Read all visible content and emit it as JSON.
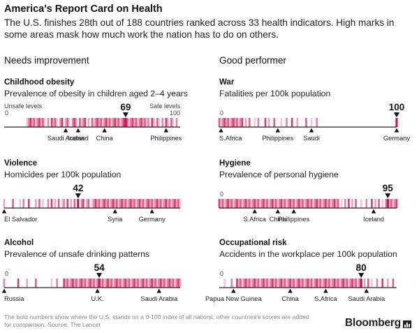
{
  "title": "America's Report Card on Health",
  "subtitle": "The U.S. finishes 28th out of 188 countries ranked across 33 health indicators. High marks in some areas mask how much work the nation has to do on others.",
  "columns": {
    "left": "Needs improvement",
    "right": "Good performer"
  },
  "footnote": "The bold numbers show where the U.S. stands on a 0-100 index of all nations; other countries's scores are added for comparison. Source: The Lancet",
  "brand": "Bloomberg",
  "colors": {
    "tick": "#d6336c",
    "axis": "#222222",
    "text": "#111111",
    "muted": "#888888"
  },
  "chart_data": [
    {
      "type": "strip",
      "title": "Childhood obesity",
      "subtitle": "Prevalence of obesity in children aged 2–4 years",
      "scale_left_label": "Unsafe levels",
      "scale_right_label": "Safe levels",
      "axis_min_label": "0",
      "axis_max_label": "100",
      "xlim": [
        0,
        100
      ],
      "us_value": 69,
      "ticks": [
        13,
        14,
        15,
        16,
        17,
        18,
        19,
        20,
        21,
        22,
        23,
        25,
        27,
        28,
        29,
        30,
        32,
        33,
        35,
        36,
        37,
        39,
        40,
        41,
        43,
        44,
        45,
        46,
        48,
        50,
        51,
        52,
        53,
        54,
        55,
        56,
        57,
        58,
        59,
        60,
        61,
        62,
        63,
        64,
        65,
        66,
        67,
        68,
        69,
        70,
        71,
        72,
        73,
        74,
        75,
        76,
        77,
        78,
        79,
        80,
        81,
        82,
        84,
        85,
        87,
        88,
        90,
        92,
        93,
        95,
        96,
        98
      ],
      "countries": [
        {
          "name": "Saudi Arabia",
          "value": 35
        },
        {
          "name": "Iceland",
          "value": 42
        },
        {
          "name": "China",
          "value": 57
        },
        {
          "name": "Philippines",
          "value": 92
        }
      ]
    },
    {
      "type": "strip",
      "title": "War",
      "subtitle": "Fatalities per 100k population",
      "axis_min_label": "0",
      "xlim": [
        0,
        100
      ],
      "us_value": 100,
      "ticks": [
        0,
        1,
        2,
        3,
        4,
        5,
        6,
        7,
        8,
        9,
        10,
        11,
        12,
        13,
        15,
        17,
        20,
        22,
        26,
        28,
        31,
        35,
        38,
        41,
        44,
        49,
        52,
        55,
        100
      ],
      "countries": [
        {
          "name": "S.Africa",
          "value": 1
        },
        {
          "name": "Philippines",
          "value": 33
        },
        {
          "name": "Saudi",
          "value": 52
        },
        {
          "name": "Germany",
          "value": 100
        }
      ]
    },
    {
      "type": "strip",
      "title": "Violence",
      "subtitle": "Homicides per 100k population",
      "xlim": [
        0,
        100
      ],
      "us_value": 42,
      "ticks": [
        0,
        5,
        9,
        11,
        14,
        18,
        20,
        22,
        25,
        27,
        29,
        31,
        33,
        34,
        36,
        38,
        40,
        42,
        44,
        45,
        47,
        48,
        50,
        51,
        52,
        53,
        54,
        55,
        56,
        57,
        58,
        59,
        60,
        61,
        62,
        63,
        64,
        65,
        66,
        67,
        68,
        69,
        70,
        71,
        72,
        73,
        74,
        75,
        76,
        77,
        78,
        79,
        80,
        81,
        82,
        83,
        84,
        85,
        86,
        87,
        88,
        89,
        90,
        91,
        92,
        93,
        94,
        95,
        96,
        97,
        98,
        99,
        100
      ],
      "countries": [
        {
          "name": "El Salvador",
          "value": 0
        },
        {
          "name": "Syria",
          "value": 63
        },
        {
          "name": "Germany",
          "value": 84
        }
      ]
    },
    {
      "type": "strip",
      "title": "Hygiene",
      "subtitle": "Prevalence of personal hygiene",
      "axis_min_label": "0",
      "xlim": [
        0,
        100
      ],
      "us_value": 95,
      "ticks": [
        0,
        1,
        2,
        3,
        4,
        5,
        6,
        7,
        8,
        9,
        10,
        11,
        12,
        13,
        14,
        15,
        16,
        17,
        18,
        19,
        20,
        21,
        22,
        23,
        24,
        25,
        26,
        27,
        28,
        29,
        30,
        31,
        32,
        33,
        34,
        35,
        36,
        37,
        38,
        39,
        40,
        41,
        42,
        43,
        44,
        45,
        46,
        47,
        48,
        49,
        50,
        51,
        52,
        53,
        54,
        55,
        56,
        57,
        58,
        59,
        60,
        61,
        62,
        63,
        64,
        65,
        66,
        67,
        69,
        71,
        73,
        75,
        77,
        80,
        83,
        86,
        88,
        90,
        92,
        94,
        95,
        96,
        97,
        98,
        99,
        100
      ],
      "countries": [
        {
          "name": "S.Africa",
          "value": 20
        },
        {
          "name": "China",
          "value": 33
        },
        {
          "name": "Philippines",
          "value": 42
        },
        {
          "name": "Iceland",
          "value": 87
        }
      ]
    },
    {
      "type": "strip",
      "title": "Alcohol",
      "subtitle": "Prevalence of unsafe drinking patterns",
      "axis_min_label": "0",
      "xlim": [
        0,
        100
      ],
      "us_value": 54,
      "ticks": [
        0,
        8,
        13,
        18,
        27,
        30,
        34,
        35,
        36,
        37,
        38,
        39,
        40,
        41,
        42,
        43,
        44,
        45,
        46,
        47,
        48,
        49,
        50,
        51,
        52,
        53,
        54,
        55,
        56,
        57,
        58,
        59,
        60,
        61,
        62,
        63,
        64,
        65,
        66,
        67,
        68,
        69,
        70,
        71,
        72,
        73,
        74,
        75,
        76,
        77,
        78,
        79,
        80,
        81,
        82,
        83,
        84,
        85,
        86,
        87,
        88,
        89,
        90,
        91,
        92,
        93,
        94,
        95,
        96,
        97,
        98,
        99,
        100
      ],
      "countries": [
        {
          "name": "Russia",
          "value": 0
        },
        {
          "name": "U.K.",
          "value": 53
        },
        {
          "name": "Saudi Arabia",
          "value": 88
        }
      ]
    },
    {
      "type": "strip",
      "title": "Occupational risk",
      "subtitle": "Accidents in the workplace per 100k population",
      "axis_min_label": "0",
      "xlim": [
        0,
        100
      ],
      "us_value": 80,
      "ticks": [
        3,
        7,
        10,
        11,
        12,
        13,
        14,
        15,
        16,
        17,
        18,
        19,
        20,
        21,
        22,
        23,
        24,
        25,
        26,
        27,
        28,
        29,
        30,
        31,
        32,
        33,
        34,
        35,
        36,
        37,
        38,
        39,
        40,
        41,
        42,
        43,
        44,
        45,
        46,
        47,
        48,
        49,
        50,
        51,
        52,
        53,
        54,
        55,
        56,
        57,
        58,
        59,
        60,
        61,
        62,
        63,
        64,
        65,
        66,
        67,
        68,
        69,
        70,
        71,
        72,
        73,
        74,
        75,
        76,
        77,
        78,
        79,
        80,
        82,
        84,
        86,
        89,
        92,
        95,
        98
      ],
      "countries": [
        {
          "name": "Papua New Guinea",
          "value": 8
        },
        {
          "name": "China",
          "value": 40
        },
        {
          "name": "S.Africa",
          "value": 60
        },
        {
          "name": "Saudi Arabia",
          "value": 83
        }
      ]
    }
  ]
}
